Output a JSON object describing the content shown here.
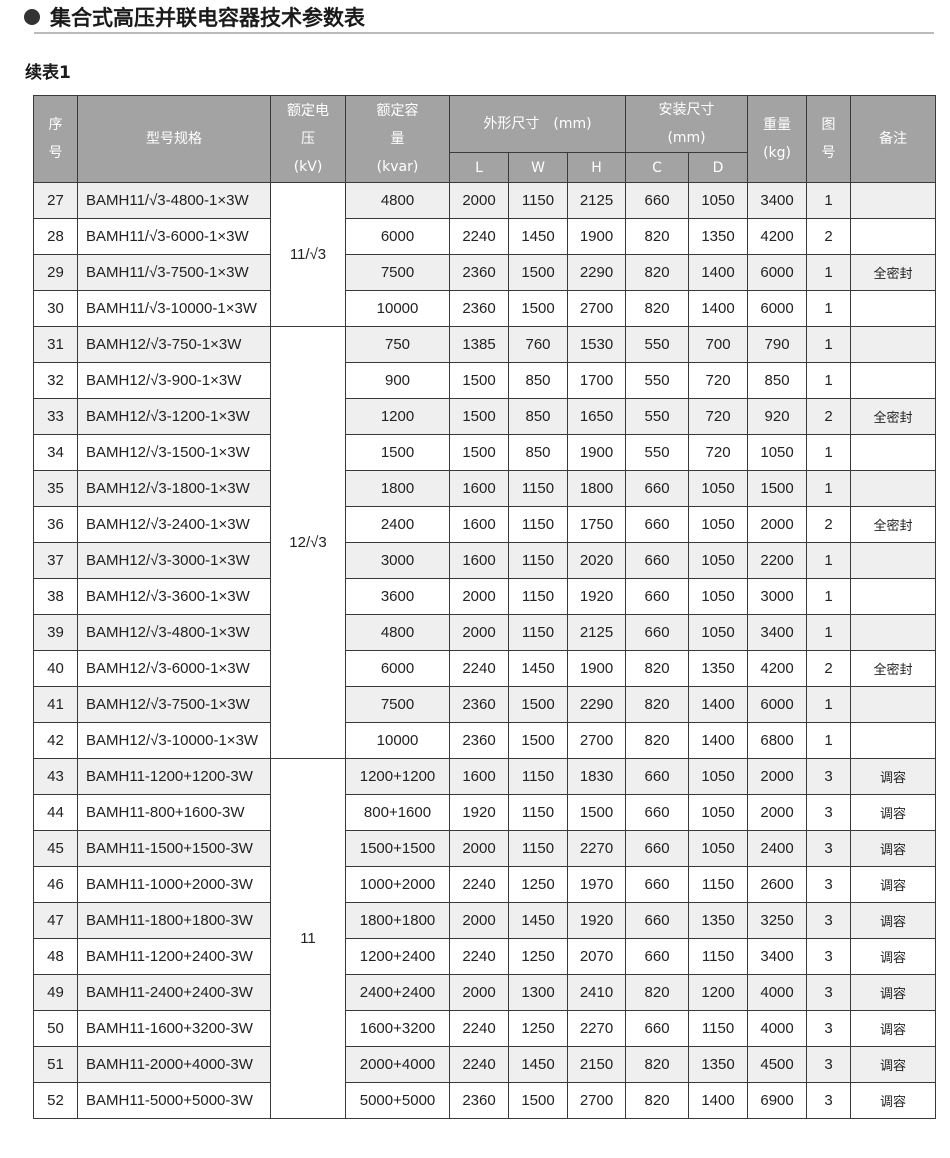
{
  "title": "集合式高压并联电容器技术参数表",
  "subtitle": "续表1",
  "header": {
    "seq": "序号",
    "model": "型号规格",
    "voltage": "额定电压(kV)",
    "capacity": "额定容量(kvar)",
    "dims": "外形尺寸　(mm)",
    "install": "安装尺寸(mm)",
    "weight": "重量(kg)",
    "fig": "图号",
    "note": "备注",
    "L": "L",
    "W": "W",
    "H": "H",
    "C": "C",
    "D": "D"
  },
  "voltage_groups": [
    {
      "value": "11/√3",
      "rows": 4
    },
    {
      "value": "12/√3",
      "rows": 12
    },
    {
      "value": "11",
      "rows": 10
    }
  ],
  "rows": [
    [
      "27",
      "BAMH11/√3-4800-1×3W",
      "4800",
      "2000",
      "1150",
      "2125",
      "660",
      "1050",
      "3400",
      "1",
      ""
    ],
    [
      "28",
      "BAMH11/√3-6000-1×3W",
      "6000",
      "2240",
      "1450",
      "1900",
      "820",
      "1350",
      "4200",
      "2",
      ""
    ],
    [
      "29",
      "BAMH11/√3-7500-1×3W",
      "7500",
      "2360",
      "1500",
      "2290",
      "820",
      "1400",
      "6000",
      "1",
      "全密封"
    ],
    [
      "30",
      "BAMH11/√3-10000-1×3W",
      "10000",
      "2360",
      "1500",
      "2700",
      "820",
      "1400",
      "6000",
      "1",
      ""
    ],
    [
      "31",
      "BAMH12/√3-750-1×3W",
      "750",
      "1385",
      "760",
      "1530",
      "550",
      "700",
      "790",
      "1",
      ""
    ],
    [
      "32",
      "BAMH12/√3-900-1×3W",
      "900",
      "1500",
      "850",
      "1700",
      "550",
      "720",
      "850",
      "1",
      ""
    ],
    [
      "33",
      "BAMH12/√3-1200-1×3W",
      "1200",
      "1500",
      "850",
      "1650",
      "550",
      "720",
      "920",
      "2",
      "全密封"
    ],
    [
      "34",
      "BAMH12/√3-1500-1×3W",
      "1500",
      "1500",
      "850",
      "1900",
      "550",
      "720",
      "1050",
      "1",
      ""
    ],
    [
      "35",
      "BAMH12/√3-1800-1×3W",
      "1800",
      "1600",
      "1150",
      "1800",
      "660",
      "1050",
      "1500",
      "1",
      ""
    ],
    [
      "36",
      "BAMH12/√3-2400-1×3W",
      "2400",
      "1600",
      "1150",
      "1750",
      "660",
      "1050",
      "2000",
      "2",
      "全密封"
    ],
    [
      "37",
      "BAMH12/√3-3000-1×3W",
      "3000",
      "1600",
      "1150",
      "2020",
      "660",
      "1050",
      "2200",
      "1",
      ""
    ],
    [
      "38",
      "BAMH12/√3-3600-1×3W",
      "3600",
      "2000",
      "1150",
      "1920",
      "660",
      "1050",
      "3000",
      "1",
      ""
    ],
    [
      "39",
      "BAMH12/√3-4800-1×3W",
      "4800",
      "2000",
      "1150",
      "2125",
      "660",
      "1050",
      "3400",
      "1",
      ""
    ],
    [
      "40",
      "BAMH12/√3-6000-1×3W",
      "6000",
      "2240",
      "1450",
      "1900",
      "820",
      "1350",
      "4200",
      "2",
      "全密封"
    ],
    [
      "41",
      "BAMH12/√3-7500-1×3W",
      "7500",
      "2360",
      "1500",
      "2290",
      "820",
      "1400",
      "6000",
      "1",
      ""
    ],
    [
      "42",
      "BAMH12/√3-10000-1×3W",
      "10000",
      "2360",
      "1500",
      "2700",
      "820",
      "1400",
      "6800",
      "1",
      ""
    ],
    [
      "43",
      "BAMH11-1200+1200-3W",
      "1200+1200",
      "1600",
      "1150",
      "1830",
      "660",
      "1050",
      "2000",
      "3",
      "调容"
    ],
    [
      "44",
      "BAMH11-800+1600-3W",
      "800+1600",
      "1920",
      "1150",
      "1500",
      "660",
      "1050",
      "2000",
      "3",
      "调容"
    ],
    [
      "45",
      "BAMH11-1500+1500-3W",
      "1500+1500",
      "2000",
      "1150",
      "2270",
      "660",
      "1050",
      "2400",
      "3",
      "调容"
    ],
    [
      "46",
      "BAMH11-1000+2000-3W",
      "1000+2000",
      "2240",
      "1250",
      "1970",
      "660",
      "1150",
      "2600",
      "3",
      "调容"
    ],
    [
      "47",
      "BAMH11-1800+1800-3W",
      "1800+1800",
      "2000",
      "1450",
      "1920",
      "660",
      "1350",
      "3250",
      "3",
      "调容"
    ],
    [
      "48",
      "BAMH11-1200+2400-3W",
      "1200+2400",
      "2240",
      "1250",
      "2070",
      "660",
      "1150",
      "3400",
      "3",
      "调容"
    ],
    [
      "49",
      "BAMH11-2400+2400-3W",
      "2400+2400",
      "2000",
      "1300",
      "2410",
      "820",
      "1200",
      "4000",
      "3",
      "调容"
    ],
    [
      "50",
      "BAMH11-1600+3200-3W",
      "1600+3200",
      "2240",
      "1250",
      "2270",
      "660",
      "1150",
      "4000",
      "3",
      "调容"
    ],
    [
      "51",
      "BAMH11-2000+4000-3W",
      "2000+4000",
      "2240",
      "1450",
      "2150",
      "820",
      "1350",
      "4500",
      "3",
      "调容"
    ],
    [
      "52",
      "BAMH11-5000+5000-3W",
      "5000+5000",
      "2360",
      "1500",
      "2700",
      "820",
      "1400",
      "6900",
      "3",
      "调容"
    ]
  ]
}
